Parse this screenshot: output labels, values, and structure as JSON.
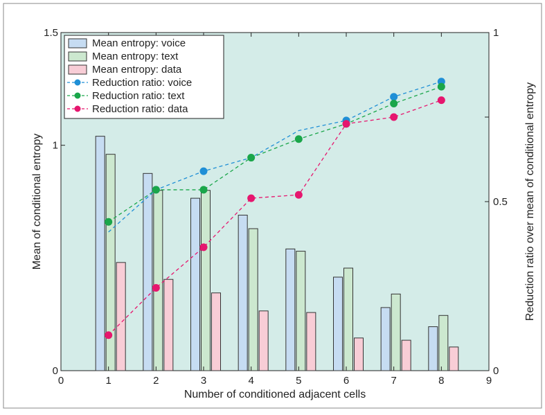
{
  "chart_data": {
    "type": "bar",
    "title": "",
    "xlabel": "Number of conditioned adjacent cells",
    "ylabel_left": "Mean of conditional entropy",
    "ylabel_right": "Reduction ratio over mean of conditional entropy",
    "x_range": [
      0,
      9
    ],
    "x_ticks": [
      0,
      1,
      2,
      3,
      4,
      5,
      6,
      7,
      8,
      9
    ],
    "left_y_range": [
      0,
      1.5
    ],
    "left_y_tick_labels": [
      "0",
      "1",
      "1.5"
    ],
    "right_y_range": [
      0,
      1
    ],
    "right_y_tick_labels": [
      "0",
      "0.5",
      "1"
    ],
    "categories": [
      1,
      2,
      3,
      4,
      5,
      6,
      7,
      8
    ],
    "grid": false,
    "legend_placement": "top-left",
    "background_color": "#d4ece8",
    "bar_series": [
      {
        "name": "Mean entropy: voice",
        "color": "#c6dcf2",
        "values": [
          1.04,
          0.875,
          0.765,
          0.69,
          0.54,
          0.415,
          0.28,
          0.195
        ]
      },
      {
        "name": "Mean entropy: text",
        "color": "#cce8cf",
        "values": [
          0.96,
          0.8,
          0.8,
          0.63,
          0.53,
          0.455,
          0.34,
          0.245
        ]
      },
      {
        "name": "Mean entropy: data",
        "color": "#f8cdd6",
        "values": [
          0.48,
          0.405,
          0.345,
          0.265,
          0.258,
          0.145,
          0.135,
          0.105
        ]
      }
    ],
    "line_series": [
      {
        "name": "Reduction ratio: voice",
        "color": "#1f8fd6",
        "axis": "right",
        "values": [
          null,
          0.535,
          0.59,
          null,
          null,
          0.74,
          0.81,
          0.855
        ]
      },
      {
        "name": "Reduction ratio: text",
        "color": "#1aa64a",
        "axis": "right",
        "values": [
          0.44,
          0.535,
          0.535,
          0.63,
          0.685,
          0.73,
          0.79,
          0.84
        ]
      },
      {
        "name": "Reduction ratio: data",
        "color": "#e6166e",
        "axis": "right",
        "values": [
          0.105,
          0.245,
          0.365,
          0.51,
          0.52,
          0.73,
          0.75,
          0.8
        ]
      }
    ],
    "voice_dashed_line_points": [
      [
        1,
        0.41
      ],
      [
        2,
        0.535
      ],
      [
        3,
        0.59
      ],
      [
        4,
        0.63
      ],
      [
        5,
        0.71
      ],
      [
        6,
        0.74
      ],
      [
        7,
        0.81
      ],
      [
        8,
        0.855
      ]
    ]
  }
}
